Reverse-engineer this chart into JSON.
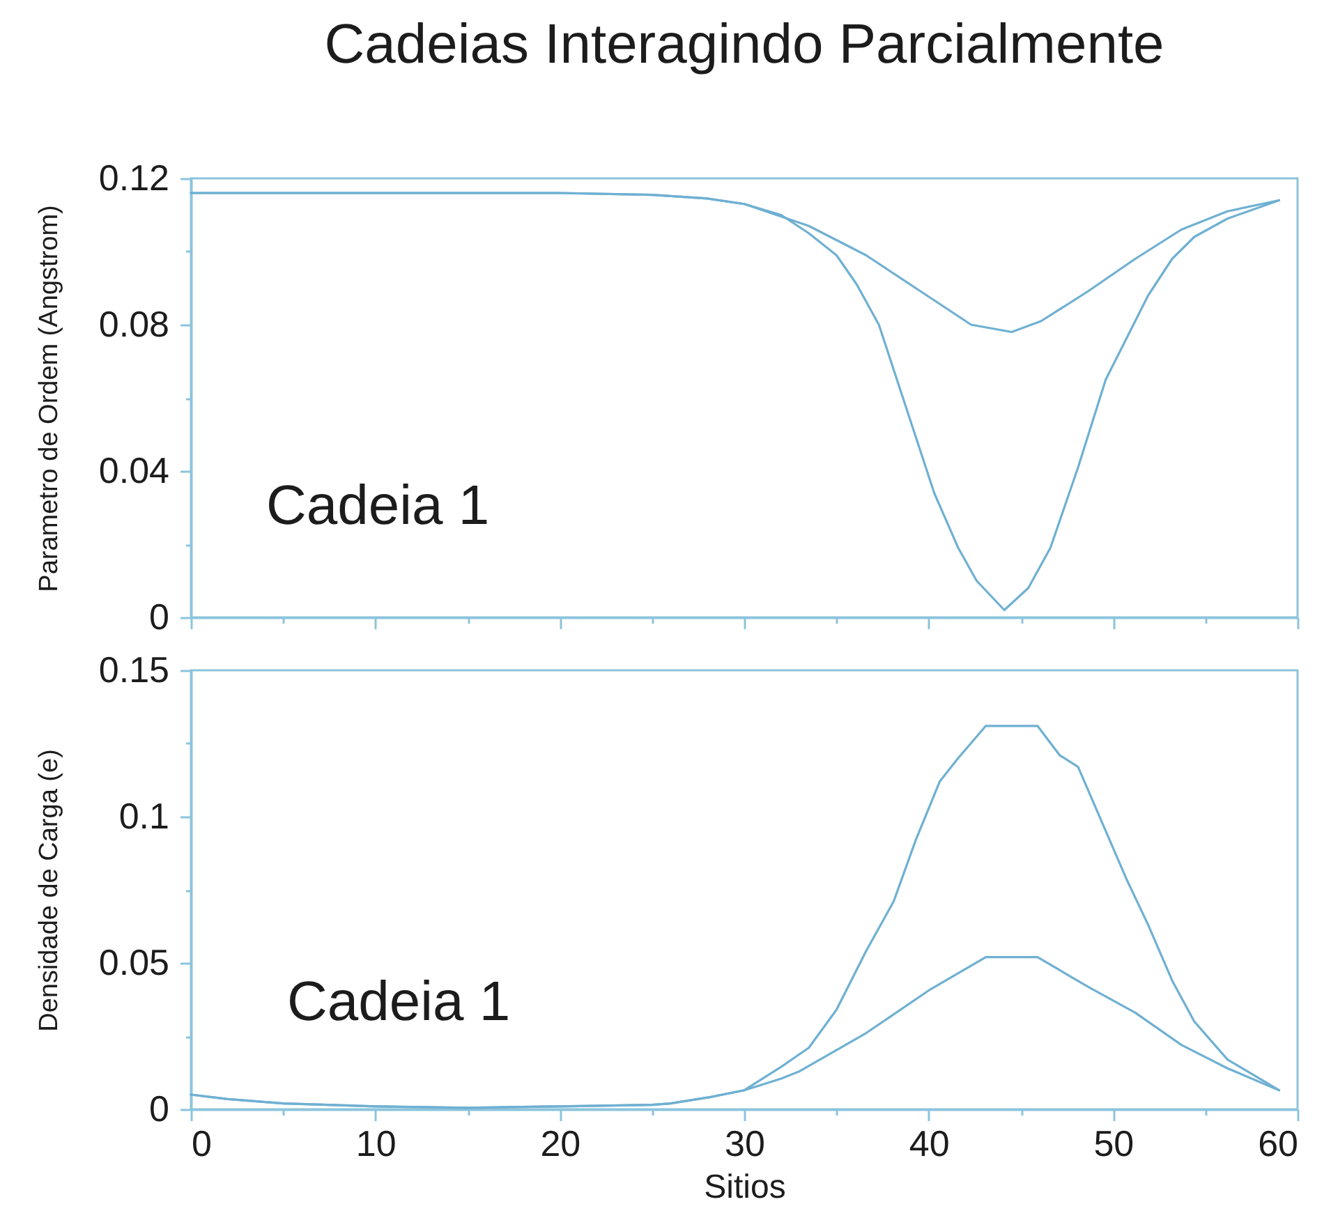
{
  "chart_data": [
    {
      "type": "line",
      "title": "Cadeias Interagindo Parcialmente",
      "ylabel": "Parametro de Ordem (Angstrom)",
      "annotations": [
        "Cadeia 1"
      ],
      "xlim": [
        0,
        60
      ],
      "xticks": [
        0,
        {
          "value": 5,
          "label": null
        },
        10,
        {
          "value": 15,
          "label": null
        },
        20,
        {
          "value": 25,
          "label": null
        },
        30,
        {
          "value": 35,
          "label": null
        },
        40,
        {
          "value": 45,
          "label": null
        },
        50,
        {
          "value": 55,
          "label": null
        },
        60
      ],
      "ylim": [
        0,
        0.12
      ],
      "yticks": [
        0,
        {
          "value": 0.02,
          "label": null
        },
        0.04,
        {
          "value": 0.06,
          "label": null
        },
        0.08,
        {
          "value": 0.1,
          "label": null
        },
        0.12
      ],
      "tick_labels": "y",
      "series": [
        {
          "color": "#6fb0d2",
          "x": [
            0,
            5,
            10,
            15,
            20,
            25,
            28,
            30,
            33.5,
            36.6,
            39.6,
            42.3,
            44.5,
            46.1,
            48.6,
            51.2,
            53.7,
            56.2,
            59
          ],
          "values": [
            0.116,
            0.116,
            0.116,
            0.116,
            0.116,
            0.1155,
            0.1145,
            0.113,
            0.107,
            0.099,
            0.089,
            0.08,
            0.078,
            0.081,
            0.089,
            0.098,
            0.106,
            0.111,
            0.114
          ]
        },
        {
          "color": "#6fb0d2",
          "x": [
            0,
            5,
            10,
            15,
            20,
            25,
            28,
            30,
            32,
            33.5,
            35,
            36.1,
            37.3,
            38.8,
            40.3,
            41.6,
            42.6,
            44.1,
            45.4,
            46.6,
            48.1,
            49.6,
            51.2,
            51.9,
            53.2,
            54.4,
            56.2,
            59
          ],
          "values": [
            0.116,
            0.116,
            0.116,
            0.116,
            0.116,
            0.1155,
            0.1145,
            0.113,
            0.11,
            0.105,
            0.099,
            0.091,
            0.08,
            0.057,
            0.034,
            0.019,
            0.01,
            0.002,
            0.008,
            0.019,
            0.041,
            0.065,
            0.081,
            0.088,
            0.098,
            0.104,
            0.109,
            0.114
          ]
        }
      ]
    },
    {
      "type": "line",
      "xlabel": "Sitios",
      "ylabel": "Densidade de Carga (e)",
      "annotations": [
        "Cadeia 1"
      ],
      "xlim": [
        0,
        60
      ],
      "xticks": [
        0,
        {
          "value": 5,
          "label": null
        },
        10,
        {
          "value": 15,
          "label": null
        },
        20,
        {
          "value": 25,
          "label": null
        },
        30,
        {
          "value": 35,
          "label": null
        },
        40,
        {
          "value": 45,
          "label": null
        },
        50,
        {
          "value": 55,
          "label": null
        },
        60
      ],
      "ylim": [
        0,
        0.15
      ],
      "yticks": [
        0,
        {
          "value": 0.025,
          "label": null
        },
        0.05,
        {
          "value": 0.075,
          "label": null
        },
        0.1,
        {
          "value": 0.125,
          "label": null
        },
        0.15
      ],
      "series": [
        {
          "color": "#6fb0d2",
          "x": [
            0,
            2,
            5,
            10,
            15,
            20,
            25,
            26,
            28,
            30,
            32,
            33.5,
            35,
            36.6,
            38.1,
            39.3,
            40.6,
            41.6,
            43.1,
            45.9,
            47.1,
            48.1,
            49.4,
            50.7,
            51.9,
            53.2,
            54.4,
            56.2,
            59
          ],
          "values": [
            0.005,
            0.0035,
            0.002,
            0.001,
            0.0005,
            0.001,
            0.0015,
            0.002,
            0.004,
            0.0065,
            0.0145,
            0.021,
            0.034,
            0.054,
            0.071,
            0.092,
            0.112,
            0.12,
            0.131,
            0.131,
            0.121,
            0.117,
            0.098,
            0.079,
            0.063,
            0.044,
            0.03,
            0.017,
            0.0065
          ]
        },
        {
          "color": "#6fb0d2",
          "x": [
            0,
            2,
            5,
            10,
            15,
            20,
            25,
            26,
            28,
            30,
            32,
            33,
            36.6,
            40.1,
            43.1,
            45.9,
            48.6,
            51.2,
            53.7,
            56.2,
            59
          ],
          "values": [
            0.005,
            0.0035,
            0.002,
            0.001,
            0.0005,
            0.001,
            0.0015,
            0.002,
            0.004,
            0.0065,
            0.0105,
            0.013,
            0.026,
            0.041,
            0.052,
            0.052,
            0.042,
            0.033,
            0.022,
            0.014,
            0.0065
          ]
        }
      ]
    }
  ]
}
